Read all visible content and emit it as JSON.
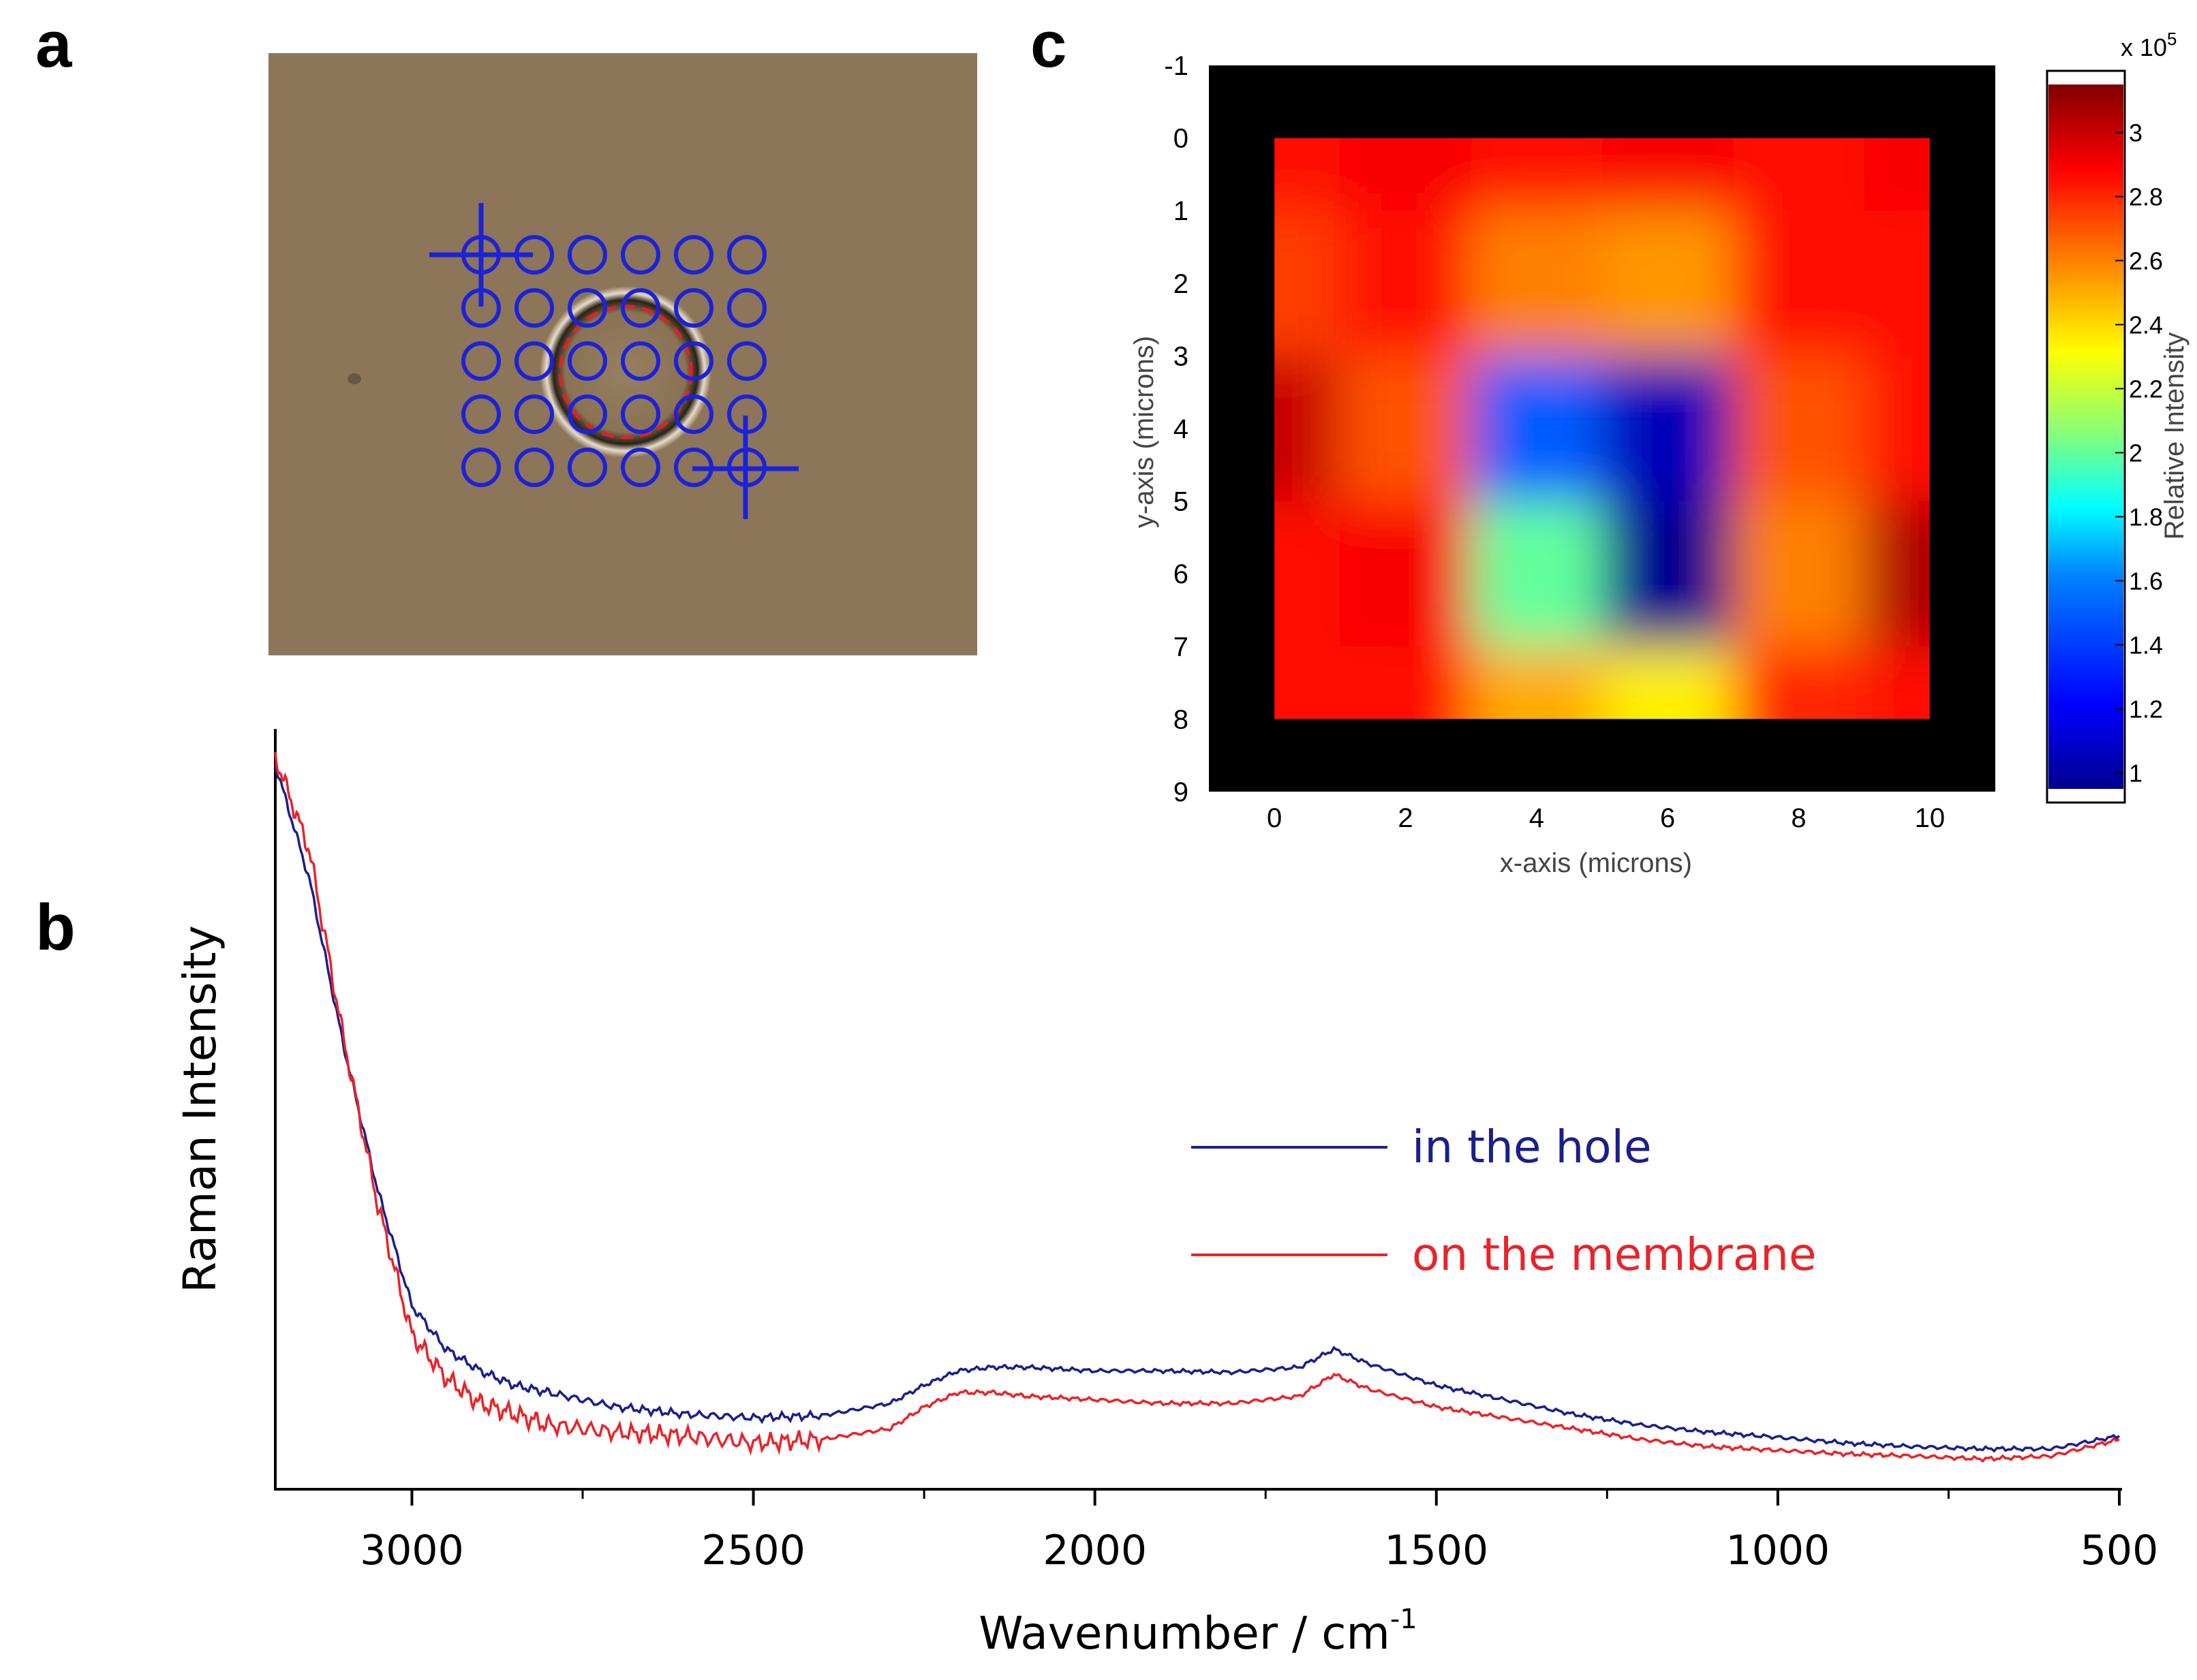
{
  "panels": {
    "a": "a",
    "b": "b",
    "c": "c"
  },
  "colors": {
    "hole": "#1a1f8c",
    "membrane": "#e8242a",
    "microscope_bg": "#8c7558",
    "grid_marker": "#1c22d8",
    "well_mark": "#d8242a"
  },
  "microscope": {
    "grid": {
      "rows": 5,
      "cols": 6
    },
    "icons": [
      "crosshair-icon",
      "circle-marker-icon"
    ]
  },
  "chart_data": [
    {
      "type": "line",
      "panel": "b",
      "xlabel": "Wavenumber / cm",
      "xlabel_sup": "-1",
      "ylabel": "Raman Intensity",
      "xlim": [
        3200,
        500
      ],
      "x_reversed": true,
      "xticks": [
        3000,
        2500,
        2000,
        1500,
        1000,
        500
      ],
      "ylim": [
        0,
        1
      ],
      "series": [
        {
          "name": "in the hole",
          "color": "#1a1f8c",
          "x": [
            3200,
            3150,
            3100,
            3050,
            3000,
            2950,
            2900,
            2850,
            2800,
            2700,
            2600,
            2500,
            2400,
            2300,
            2250,
            2200,
            2150,
            2100,
            2000,
            1900,
            1800,
            1700,
            1650,
            1600,
            1500,
            1400,
            1300,
            1200,
            1100,
            1000,
            900,
            800,
            700,
            600,
            500
          ],
          "y": [
            0.97,
            0.81,
            0.58,
            0.38,
            0.22,
            0.16,
            0.13,
            0.11,
            0.1,
            0.08,
            0.07,
            0.065,
            0.068,
            0.085,
            0.11,
            0.13,
            0.135,
            0.135,
            0.13,
            0.13,
            0.128,
            0.135,
            0.16,
            0.14,
            0.11,
            0.09,
            0.07,
            0.055,
            0.045,
            0.038,
            0.03,
            0.025,
            0.022,
            0.022,
            0.04
          ]
        },
        {
          "name": "on the membrane",
          "color": "#e8242a",
          "x": [
            3200,
            3150,
            3100,
            3050,
            3000,
            2950,
            2900,
            2850,
            2800,
            2700,
            2600,
            2500,
            2400,
            2300,
            2250,
            2200,
            2150,
            2100,
            2000,
            1900,
            1800,
            1700,
            1650,
            1600,
            1500,
            1400,
            1300,
            1200,
            1100,
            1000,
            900,
            800,
            700,
            600,
            500
          ],
          "y": [
            0.98,
            0.85,
            0.59,
            0.36,
            0.18,
            0.12,
            0.085,
            0.07,
            0.055,
            0.045,
            0.04,
            0.03,
            0.035,
            0.05,
            0.08,
            0.1,
            0.1,
            0.095,
            0.09,
            0.085,
            0.085,
            0.095,
            0.125,
            0.105,
            0.08,
            0.065,
            0.05,
            0.035,
            0.025,
            0.02,
            0.015,
            0.012,
            0.008,
            0.012,
            0.035
          ]
        }
      ]
    },
    {
      "type": "heatmap",
      "panel": "c",
      "xlabel": "x-axis (microns)",
      "ylabel": "y-axis (microns)",
      "xlim": [
        -1,
        11
      ],
      "ylim": [
        -1,
        9
      ],
      "xticks": [
        0,
        2,
        4,
        6,
        8,
        10
      ],
      "yticks": [
        -1,
        0,
        1,
        2,
        3,
        4,
        5,
        6,
        7,
        8,
        9
      ],
      "x": [
        0,
        2,
        4,
        6,
        8,
        10
      ],
      "y": [
        0,
        2,
        4,
        6,
        8
      ],
      "values": [
        [
          2.85,
          2.9,
          2.85,
          2.9,
          2.85,
          2.9
        ],
        [
          2.75,
          2.85,
          2.6,
          2.55,
          2.85,
          2.85
        ],
        [
          3.0,
          2.7,
          1.5,
          1.05,
          2.7,
          2.85
        ],
        [
          2.85,
          2.9,
          2.0,
          0.95,
          2.6,
          3.05
        ],
        [
          2.85,
          2.85,
          2.5,
          2.35,
          2.8,
          2.85
        ]
      ],
      "colorbar": {
        "label": "Relative Intensity",
        "exponent_base": "x 10",
        "exponent": "5",
        "range": [
          0.95,
          3.15
        ],
        "ticks": [
          "1",
          "1.2",
          "1.4",
          "1.6",
          "1.8",
          "2",
          "2.2",
          "2.4",
          "2.6",
          "2.8",
          "3"
        ]
      }
    }
  ]
}
